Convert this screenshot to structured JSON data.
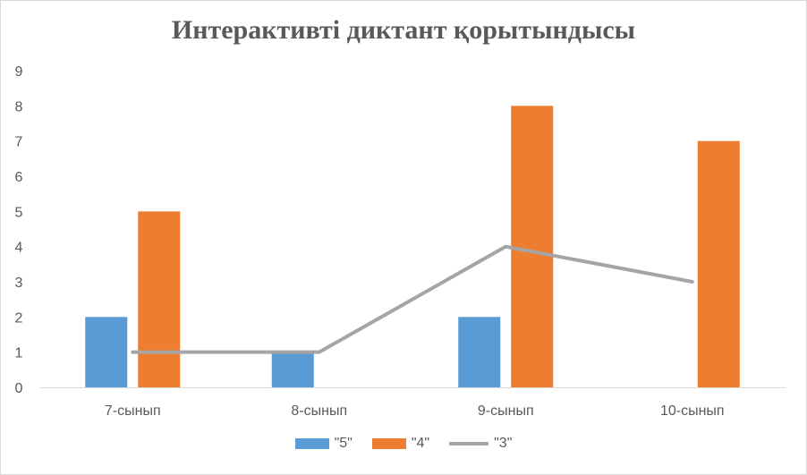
{
  "chart_data": {
    "type": "bar",
    "title": "Интерактивті диктант қорытындысы",
    "categories": [
      "7-сынып",
      "8-сынып",
      "9-сынып",
      "10-сынып"
    ],
    "ylim": [
      0,
      9
    ],
    "y_ticks": [
      "0",
      "1",
      "2",
      "3",
      "4",
      "5",
      "6",
      "7",
      "8",
      "9"
    ],
    "grid": false,
    "legend_position": "bottom",
    "series": [
      {
        "name": "\"5\"",
        "type": "bar",
        "color": "#5b9bd5",
        "values": [
          2,
          1,
          2,
          0
        ]
      },
      {
        "name": "\"4\"",
        "type": "bar",
        "color": "#ed7d31",
        "values": [
          5,
          0,
          8,
          7
        ]
      },
      {
        "name": "\"3\"",
        "type": "line",
        "color": "#a5a5a5",
        "values": [
          1,
          1,
          4,
          3
        ]
      }
    ]
  }
}
